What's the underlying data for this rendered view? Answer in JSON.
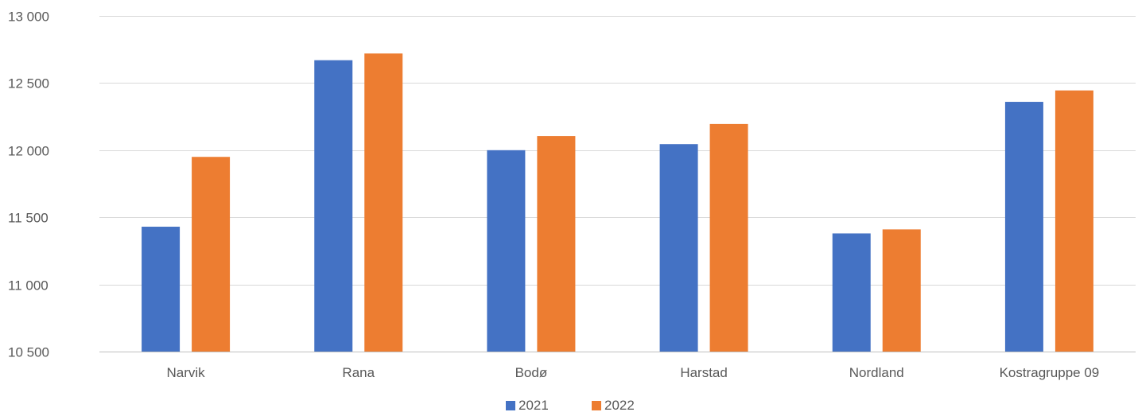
{
  "chart_data": {
    "type": "bar",
    "categories": [
      "Narvik",
      "Rana",
      "Bodø",
      "Harstad",
      "Nordland",
      "Kostragruppe 09"
    ],
    "series": [
      {
        "name": "2021",
        "color": "#4472C4",
        "values": [
          11430,
          12670,
          12000,
          12045,
          11380,
          12360
        ]
      },
      {
        "name": "2022",
        "color": "#ED7D31",
        "values": [
          11950,
          12720,
          12105,
          12195,
          11410,
          12445
        ]
      }
    ],
    "ylim": [
      10500,
      13000
    ],
    "yticks": [
      10500,
      11000,
      11500,
      12000,
      12500,
      13000
    ],
    "ytick_labels": [
      "10 500",
      "11 000",
      "11 500",
      "12 000",
      "12 500",
      "13 000"
    ],
    "grid": true,
    "legend_position": "bottom-center"
  }
}
